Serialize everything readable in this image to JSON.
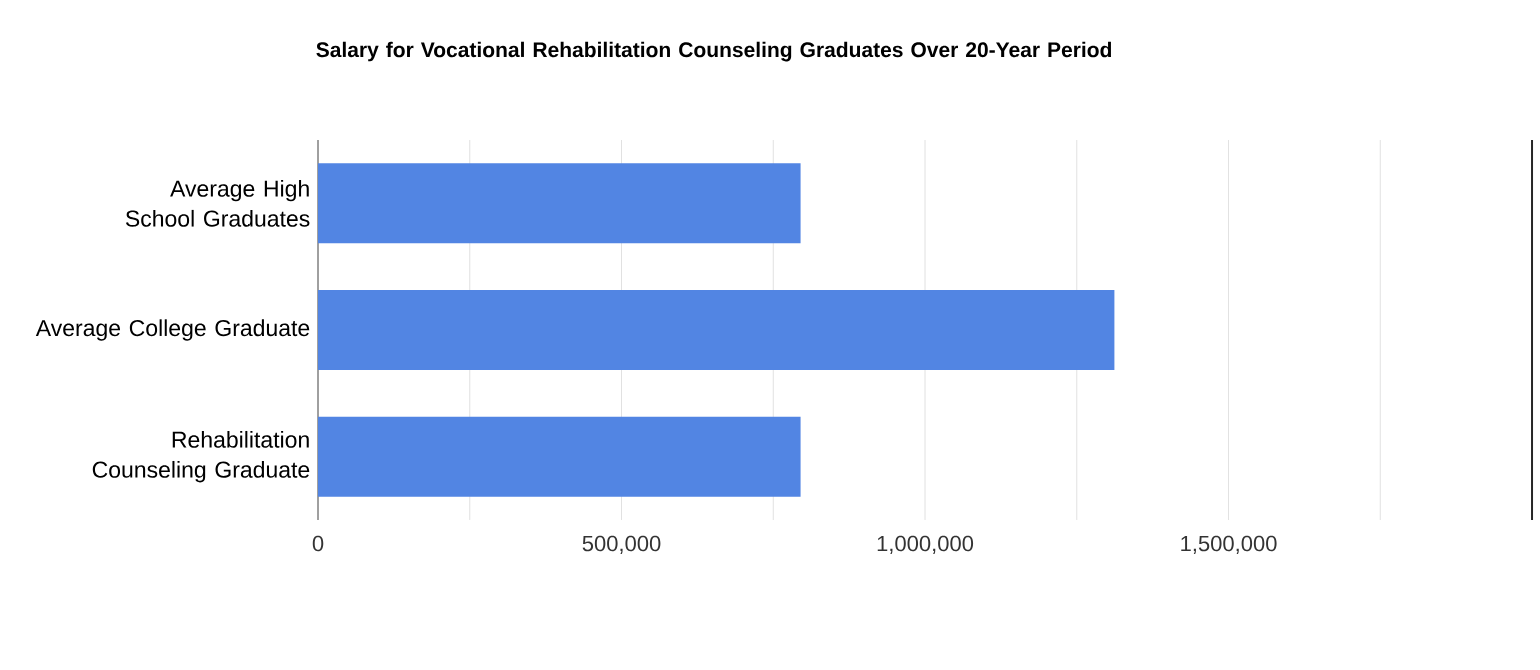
{
  "chart_data": {
    "type": "bar",
    "orientation": "horizontal",
    "title": "Salary for Vocational Rehabilitation Counseling Graduates Over 20-Year Period",
    "categories": [
      "Average High School Graduates",
      "Average College Graduate",
      "Rehabilitation Counseling Graduate"
    ],
    "values": [
      795000,
      1312000,
      795000
    ],
    "color": "#5285e3",
    "xlim": [
      0,
      2000000
    ],
    "xticks": [
      0,
      {
        "value": 250000,
        "label": null
      },
      {
        "value": 500000,
        "label": "500,000"
      },
      {
        "value": 750000,
        "label": null
      },
      {
        "value": 1000000,
        "label": "1,000,000"
      },
      {
        "value": 1250000,
        "label": null
      },
      {
        "value": 1500000,
        "label": "1,500,000"
      },
      {
        "value": 1750000,
        "label": null
      }
    ],
    "grid": "x"
  }
}
